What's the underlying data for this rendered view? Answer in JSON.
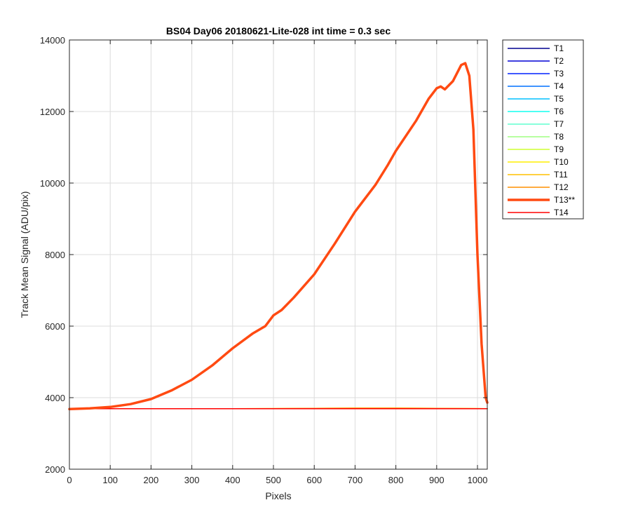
{
  "chart_data": {
    "type": "line",
    "title": "BS04 Day06 20180621-Lite-028 int time = 0.3 sec",
    "xlabel": "Pixels",
    "ylabel": "Track Mean Signal (ADU/pix)",
    "xlim": [
      0,
      1024
    ],
    "ylim": [
      2000,
      14000
    ],
    "xticks": [
      0,
      100,
      200,
      300,
      400,
      500,
      600,
      700,
      800,
      900,
      1000
    ],
    "yticks": [
      2000,
      4000,
      6000,
      8000,
      10000,
      12000,
      14000
    ],
    "grid": true,
    "legend_position": "outside-top-right",
    "series": [
      {
        "name": "T1",
        "color": "#00008f",
        "highlighted": false,
        "x": [
          0,
          100,
          200,
          300,
          400,
          500,
          600,
          700,
          800,
          900,
          1000,
          1024
        ],
        "y": [
          3690,
          3690,
          3690,
          3690,
          3690,
          3690,
          3690,
          3690,
          3690,
          3690,
          3690,
          3690
        ]
      },
      {
        "name": "T2",
        "color": "#0000d6",
        "highlighted": false,
        "x": [
          0,
          100,
          200,
          300,
          400,
          500,
          600,
          700,
          800,
          900,
          1000,
          1024
        ],
        "y": [
          3690,
          3690,
          3690,
          3690,
          3690,
          3690,
          3690,
          3690,
          3690,
          3690,
          3690,
          3690
        ]
      },
      {
        "name": "T3",
        "color": "#0020ff",
        "highlighted": false,
        "x": [
          0,
          100,
          200,
          300,
          400,
          500,
          600,
          700,
          800,
          900,
          1000,
          1024
        ],
        "y": [
          3690,
          3690,
          3690,
          3690,
          3690,
          3690,
          3690,
          3690,
          3690,
          3690,
          3690,
          3690
        ]
      },
      {
        "name": "T4",
        "color": "#0070ff",
        "highlighted": false,
        "x": [
          0,
          100,
          200,
          300,
          400,
          500,
          600,
          700,
          800,
          900,
          1000,
          1024
        ],
        "y": [
          3690,
          3690,
          3690,
          3690,
          3690,
          3690,
          3690,
          3690,
          3690,
          3690,
          3690,
          3690
        ]
      },
      {
        "name": "T5",
        "color": "#00c0ff",
        "highlighted": false,
        "x": [
          0,
          100,
          200,
          300,
          400,
          500,
          600,
          700,
          800,
          900,
          1000,
          1024
        ],
        "y": [
          3690,
          3690,
          3690,
          3690,
          3690,
          3690,
          3690,
          3690,
          3690,
          3690,
          3690,
          3690
        ]
      },
      {
        "name": "T6",
        "color": "#10ffef",
        "highlighted": false,
        "x": [
          0,
          100,
          200,
          300,
          400,
          500,
          600,
          700,
          800,
          900,
          1000,
          1024
        ],
        "y": [
          3690,
          3690,
          3690,
          3690,
          3690,
          3690,
          3690,
          3690,
          3690,
          3690,
          3690,
          3690
        ]
      },
      {
        "name": "T7",
        "color": "#60ffcf",
        "highlighted": false,
        "x": [
          0,
          100,
          200,
          300,
          400,
          500,
          600,
          700,
          800,
          900,
          1000,
          1024
        ],
        "y": [
          3690,
          3690,
          3690,
          3690,
          3690,
          3690,
          3690,
          3690,
          3690,
          3690,
          3690,
          3690
        ]
      },
      {
        "name": "T8",
        "color": "#9fff80",
        "highlighted": false,
        "x": [
          0,
          100,
          200,
          300,
          400,
          500,
          600,
          700,
          800,
          900,
          1000,
          1024
        ],
        "y": [
          3690,
          3690,
          3690,
          3690,
          3690,
          3690,
          3690,
          3690,
          3690,
          3690,
          3690,
          3690
        ]
      },
      {
        "name": "T9",
        "color": "#cfff30",
        "highlighted": false,
        "x": [
          0,
          100,
          200,
          300,
          400,
          500,
          600,
          700,
          800,
          900,
          1000,
          1024
        ],
        "y": [
          3690,
          3690,
          3690,
          3690,
          3690,
          3690,
          3690,
          3690,
          3690,
          3690,
          3690,
          3690
        ]
      },
      {
        "name": "T10",
        "color": "#ffef00",
        "highlighted": false,
        "x": [
          0,
          100,
          200,
          300,
          400,
          500,
          600,
          700,
          800,
          900,
          1000,
          1024
        ],
        "y": [
          3690,
          3690,
          3690,
          3690,
          3690,
          3695,
          3700,
          3705,
          3705,
          3700,
          3695,
          3690
        ]
      },
      {
        "name": "T11",
        "color": "#ffc000",
        "highlighted": false,
        "x": [
          0,
          100,
          200,
          300,
          400,
          500,
          600,
          700,
          800,
          900,
          1000,
          1024
        ],
        "y": [
          3690,
          3690,
          3690,
          3690,
          3690,
          3695,
          3700,
          3705,
          3705,
          3700,
          3695,
          3690
        ]
      },
      {
        "name": "T12",
        "color": "#ff9000",
        "highlighted": false,
        "x": [
          0,
          100,
          200,
          300,
          400,
          500,
          600,
          700,
          800,
          900,
          1000,
          1024
        ],
        "y": [
          3690,
          3690,
          3690,
          3690,
          3690,
          3695,
          3700,
          3705,
          3705,
          3700,
          3695,
          3690
        ]
      },
      {
        "name": "T13**",
        "color": "#ff4a12",
        "highlighted": true,
        "x": [
          0,
          50,
          100,
          150,
          200,
          250,
          300,
          350,
          400,
          450,
          480,
          500,
          520,
          550,
          600,
          650,
          700,
          750,
          780,
          800,
          850,
          880,
          900,
          910,
          920,
          940,
          960,
          970,
          980,
          990,
          1000,
          1010,
          1020,
          1024
        ],
        "y": [
          3680,
          3700,
          3740,
          3820,
          3960,
          4200,
          4500,
          4900,
          5380,
          5800,
          6000,
          6300,
          6450,
          6800,
          7450,
          8300,
          9200,
          9950,
          10500,
          10900,
          11750,
          12350,
          12650,
          12700,
          12620,
          12850,
          13300,
          13350,
          13000,
          11500,
          8000,
          5500,
          4000,
          3860
        ]
      },
      {
        "name": "T14",
        "color": "#ff0000",
        "highlighted": false,
        "x": [
          0,
          100,
          200,
          300,
          400,
          500,
          600,
          700,
          800,
          900,
          1000,
          1024
        ],
        "y": [
          3690,
          3690,
          3690,
          3690,
          3690,
          3690,
          3690,
          3690,
          3690,
          3690,
          3690,
          3690
        ]
      }
    ]
  }
}
